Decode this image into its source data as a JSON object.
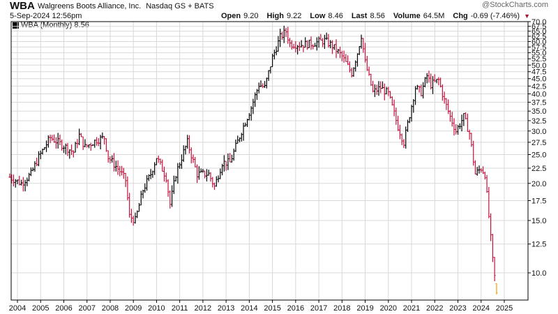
{
  "header": {
    "symbol": "WBA",
    "company": "Walgreens Boots Alliance, Inc.",
    "exchange": "Nasdaq GS + BATS",
    "timestamp": "5-Sep-2024 12:56pm",
    "watermark": "@StockCharts.com",
    "quote": [
      {
        "label": "Open",
        "value": "9.20"
      },
      {
        "label": "High",
        "value": "9.22"
      },
      {
        "label": "Low",
        "value": "8.46"
      },
      {
        "label": "Last",
        "value": "8.56"
      },
      {
        "label": "Volume",
        "value": "64.5M"
      },
      {
        "label": "Chg",
        "value": "-0.69 (-7.46%)"
      }
    ]
  },
  "legend": {
    "text": "WBA (Monthly) 8.56"
  },
  "colors": {
    "up": "#000000",
    "down": "#c8103a",
    "last": "#f2a000",
    "grid": "#d8d8d8",
    "axis": "#000000"
  },
  "chart_data": {
    "type": "bar",
    "subtype": "ohlc-monthly",
    "y_scale": "log",
    "ylim": [
      8.1,
      70.0
    ],
    "y_ticks": [
      10.0,
      12.5,
      15.0,
      17.5,
      20.0,
      22.5,
      25.0,
      27.5,
      30.0,
      32.5,
      35.0,
      37.5,
      40.0,
      42.5,
      45.0,
      47.5,
      50.0,
      52.5,
      55.0,
      57.5,
      60.0,
      62.5,
      65.0,
      67.5,
      70.0
    ],
    "y_tick_labels": [
      "10.0",
      "12.5",
      "15.0",
      "17.5",
      "20.0",
      "22.5",
      "25.0",
      "27.5",
      "30.0",
      "32.5",
      "35.0",
      "37.5",
      "40.0",
      "42.5",
      "45.0",
      "47.5",
      "50.0",
      "52.5",
      "55.0",
      "57.5",
      "60.0",
      "62.5",
      "65.0",
      "67.5",
      "70.0"
    ],
    "x_labels": [
      "2004",
      "2005",
      "2006",
      "2007",
      "2008",
      "2009",
      "2010",
      "2011",
      "2012",
      "2013",
      "2014",
      "2015",
      "2016",
      "2017",
      "2018",
      "2019",
      "2020",
      "2021",
      "2022",
      "2023",
      "2024",
      "2025"
    ],
    "grid": true,
    "anchors": [
      [
        "2003-09",
        21.0
      ],
      [
        "2004-03",
        20.0
      ],
      [
        "2004-08",
        21.5
      ],
      [
        "2004-12",
        24.5
      ],
      [
        "2005-06",
        28.5
      ],
      [
        "2005-12",
        27.0
      ],
      [
        "2006-06",
        25.5
      ],
      [
        "2006-09",
        29.0
      ],
      [
        "2006-12",
        26.5
      ],
      [
        "2007-06",
        28.0
      ],
      [
        "2007-10",
        28.5
      ],
      [
        "2007-12",
        24.5
      ],
      [
        "2008-06",
        22.0
      ],
      [
        "2008-09",
        20.5
      ],
      [
        "2008-11",
        15.5
      ],
      [
        "2009-02",
        15.0
      ],
      [
        "2009-06",
        19.0
      ],
      [
        "2009-10",
        21.5
      ],
      [
        "2010-01",
        24.5
      ],
      [
        "2010-06",
        21.0
      ],
      [
        "2010-08",
        17.0
      ],
      [
        "2010-11",
        21.5
      ],
      [
        "2011-03",
        25.5
      ],
      [
        "2011-05",
        27.5
      ],
      [
        "2011-10",
        21.5
      ],
      [
        "2012-04",
        21.5
      ],
      [
        "2012-07",
        19.5
      ],
      [
        "2012-11",
        23.5
      ],
      [
        "2013-03",
        23.5
      ],
      [
        "2013-09",
        30.0
      ],
      [
        "2014-02",
        36.0
      ],
      [
        "2014-06",
        43.0
      ],
      [
        "2014-09",
        42.0
      ],
      [
        "2015-01",
        53.0
      ],
      [
        "2015-05",
        62.0
      ],
      [
        "2015-08",
        65.0
      ],
      [
        "2015-10",
        59.0
      ],
      [
        "2016-03",
        58.5
      ],
      [
        "2016-09",
        59.0
      ],
      [
        "2017-04",
        60.5
      ],
      [
        "2017-08",
        58.0
      ],
      [
        "2018-01",
        53.5
      ],
      [
        "2018-06",
        47.0
      ],
      [
        "2018-09",
        55.0
      ],
      [
        "2018-11",
        63.0
      ],
      [
        "2019-01",
        51.0
      ],
      [
        "2019-05",
        40.5
      ],
      [
        "2019-09",
        42.0
      ],
      [
        "2020-01",
        40.0
      ],
      [
        "2020-06",
        31.0
      ],
      [
        "2020-09",
        27.5
      ],
      [
        "2020-12",
        34.0
      ],
      [
        "2021-03",
        42.0
      ],
      [
        "2021-06",
        40.5
      ],
      [
        "2021-09",
        46.0
      ],
      [
        "2021-11",
        43.0
      ],
      [
        "2022-03",
        44.5
      ],
      [
        "2022-06",
        38.0
      ],
      [
        "2022-09",
        33.5
      ],
      [
        "2022-12",
        30.0
      ],
      [
        "2023-04",
        33.5
      ],
      [
        "2023-07",
        29.5
      ],
      [
        "2023-10",
        21.5
      ],
      [
        "2024-01",
        22.5
      ],
      [
        "2024-03",
        21.5
      ],
      [
        "2024-05",
        15.5
      ],
      [
        "2024-07",
        11.0
      ],
      [
        "2024-09",
        8.56
      ]
    ],
    "last_bar": {
      "label": "Sep 2024",
      "open": 9.2,
      "high": 9.22,
      "low": 8.46,
      "close": 8.56
    }
  }
}
